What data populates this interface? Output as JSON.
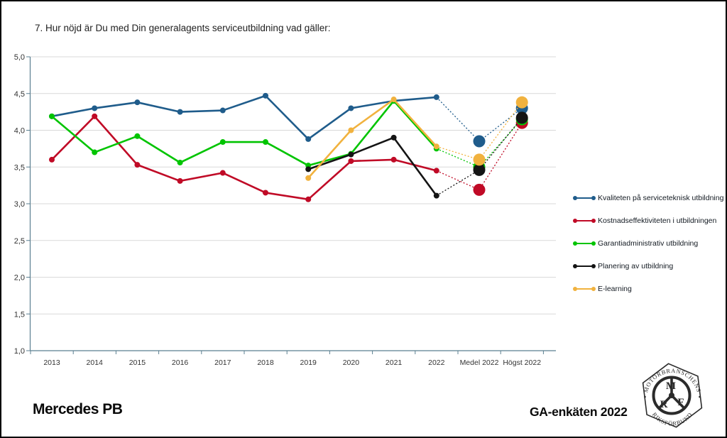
{
  "title": "7. Hur nöjd är Du med Din generalagents serviceutbildning vad gäller:",
  "footer": {
    "brand": "Mercedes PB",
    "survey": "GA-enkäten 2022"
  },
  "logo": {
    "top_text": "MOTORBRANSCHENS",
    "bottom_text": "RIKSFÖRBUND",
    "letter_m": "M",
    "letter_r": "R",
    "letter_f": "F"
  },
  "chart_data": {
    "type": "line",
    "title": "7. Hur nöjd är Du med Din generalagents serviceutbildning vad gäller:",
    "categories": [
      "2013",
      "2014",
      "2015",
      "2016",
      "2017",
      "2018",
      "2019",
      "2020",
      "2021",
      "2022",
      "Medel 2022",
      "Högst 2022"
    ],
    "ylim": [
      1.0,
      5.0
    ],
    "ytick_step": 0.5,
    "ytick_labels": [
      "1,0",
      "1,5",
      "2,0",
      "2,5",
      "3,0",
      "3,5",
      "4,0",
      "4,5",
      "5,0"
    ],
    "grid": true,
    "legend_position": "right",
    "dotted_from_index": 9,
    "large_marker_indices": [
      10,
      11
    ],
    "series": [
      {
        "name": "Kvaliteten på serviceteknisk utbildning",
        "color": "#1f5c8b",
        "values": [
          4.19,
          4.3,
          4.38,
          4.25,
          4.27,
          4.47,
          3.88,
          4.3,
          4.4,
          4.45,
          3.85,
          4.3
        ]
      },
      {
        "name": "Kostnadseffektiviteten i utbildningen",
        "color": "#c00a26",
        "values": [
          3.6,
          4.19,
          3.53,
          3.31,
          3.42,
          3.15,
          3.06,
          3.58,
          3.6,
          3.45,
          3.19,
          4.1
        ]
      },
      {
        "name": "Garantiadministrativ utbildning",
        "color": "#00c400",
        "values": [
          4.19,
          3.7,
          3.92,
          3.56,
          3.84,
          3.84,
          3.52,
          3.68,
          4.4,
          3.75,
          3.5,
          4.15
        ]
      },
      {
        "name": "Planering av utbildning",
        "color": "#141414",
        "values": [
          null,
          null,
          null,
          null,
          null,
          null,
          3.47,
          3.67,
          3.9,
          3.11,
          3.46,
          4.17
        ]
      },
      {
        "name": "E-learning",
        "color": "#f1b23e",
        "values": [
          null,
          null,
          null,
          null,
          null,
          null,
          3.35,
          4.0,
          4.42,
          3.78,
          3.6,
          4.38
        ]
      }
    ]
  }
}
